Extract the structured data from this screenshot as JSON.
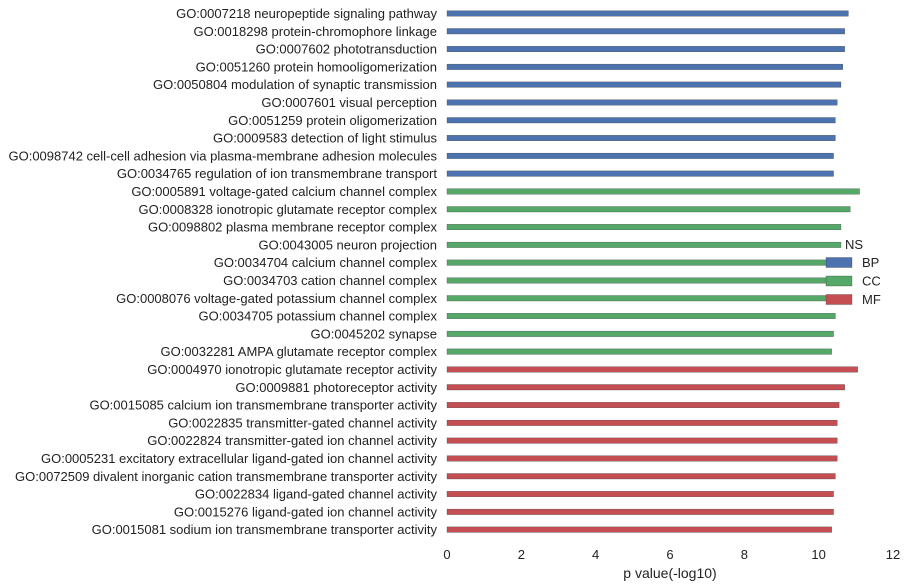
{
  "colors": {
    "BP": "#4c72b0",
    "CC": "#55a868",
    "MF": "#c44e52",
    "background": "#ffffff",
    "text": "#222222"
  },
  "chart_data": {
    "type": "bar",
    "orientation": "horizontal",
    "categories": [
      "GO:0007218 neuropeptide signaling pathway",
      "GO:0018298 protein-chromophore linkage",
      "GO:0007602 phototransduction",
      "GO:0051260 protein homooligomerization",
      "GO:0050804 modulation of synaptic transmission",
      "GO:0007601 visual perception",
      "GO:0051259 protein oligomerization",
      "GO:0009583 detection of light stimulus",
      "GO:0098742 cell-cell adhesion via plasma-membrane adhesion molecules",
      "GO:0034765 regulation of ion transmembrane transport",
      "GO:0005891 voltage-gated calcium channel complex",
      "GO:0008328 ionotropic glutamate receptor complex",
      "GO:0098802 plasma membrane receptor complex",
      "GO:0043005 neuron projection",
      "GO:0034704 calcium channel complex",
      "GO:0034703 cation channel complex",
      "GO:0008076 voltage-gated potassium channel complex",
      "GO:0034705 potassium channel complex",
      "GO:0045202 synapse",
      "GO:0032281 AMPA glutamate receptor complex",
      "GO:0004970 ionotropic glutamate receptor activity",
      "GO:0009881 photoreceptor activity",
      "GO:0015085 calcium ion transmembrane transporter activity",
      "GO:0022835 transmitter-gated channel activity",
      "GO:0022824 transmitter-gated ion channel activity",
      "GO:0005231 excitatory extracellular ligand-gated ion channel activity",
      "GO:0072509 divalent inorganic cation transmembrane transporter activity",
      "GO:0022834 ligand-gated channel activity",
      "GO:0015276 ligand-gated ion channel activity",
      "GO:0015081 sodium ion transmembrane transporter activity"
    ],
    "values": [
      10.8,
      10.7,
      10.7,
      10.65,
      10.6,
      10.5,
      10.45,
      10.45,
      10.4,
      10.4,
      11.1,
      10.85,
      10.6,
      10.6,
      10.6,
      10.55,
      10.5,
      10.45,
      10.4,
      10.35,
      11.05,
      10.7,
      10.55,
      10.5,
      10.5,
      10.5,
      10.45,
      10.4,
      10.4,
      10.35
    ],
    "groups": [
      "BP",
      "BP",
      "BP",
      "BP",
      "BP",
      "BP",
      "BP",
      "BP",
      "BP",
      "BP",
      "CC",
      "CC",
      "CC",
      "CC",
      "CC",
      "CC",
      "CC",
      "CC",
      "CC",
      "CC",
      "MF",
      "MF",
      "MF",
      "MF",
      "MF",
      "MF",
      "MF",
      "MF",
      "MF",
      "MF"
    ],
    "xlabel": "p value(-log10)",
    "xlim": [
      0,
      12
    ],
    "xticks": [
      0,
      2,
      4,
      6,
      8,
      10,
      12
    ],
    "legend": {
      "title": "NS",
      "entries": [
        "BP",
        "CC",
        "MF"
      ],
      "placement": "right"
    },
    "grid": false
  }
}
